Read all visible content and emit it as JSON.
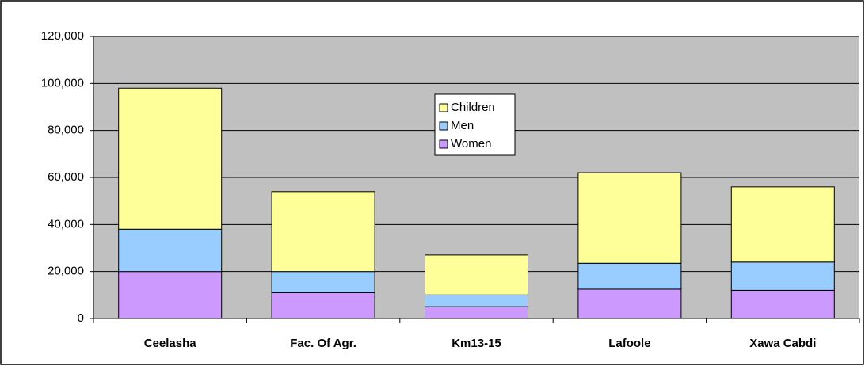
{
  "chart_data": {
    "type": "stacked_bar",
    "categories": [
      "Ceelasha",
      "Fac. Of Agr.",
      "Km13-15",
      "Lafoole",
      "Xawa Cabdi"
    ],
    "series": [
      {
        "name": "Women",
        "color": "#cc99ff",
        "values": [
          20000,
          11000,
          5000,
          12500,
          12000
        ]
      },
      {
        "name": "Men",
        "color": "#99ccff",
        "values": [
          18000,
          9000,
          5000,
          11000,
          12000
        ]
      },
      {
        "name": "Children",
        "color": "#ffff99",
        "values": [
          60000,
          34000,
          17000,
          38500,
          32000
        ]
      }
    ],
    "ylim": [
      0,
      120000
    ],
    "yticks": [
      0,
      {
        "value": 20000,
        "label": "20,000"
      },
      {
        "value": 40000,
        "label": "40,000"
      },
      {
        "value": 60000,
        "label": "60,000"
      },
      {
        "value": 80000,
        "label": "80,000"
      },
      {
        "value": 100000,
        "label": "100,000"
      },
      {
        "value": 120000,
        "label": "120,000"
      }
    ],
    "grid": true,
    "background": "#c0c0c0"
  }
}
